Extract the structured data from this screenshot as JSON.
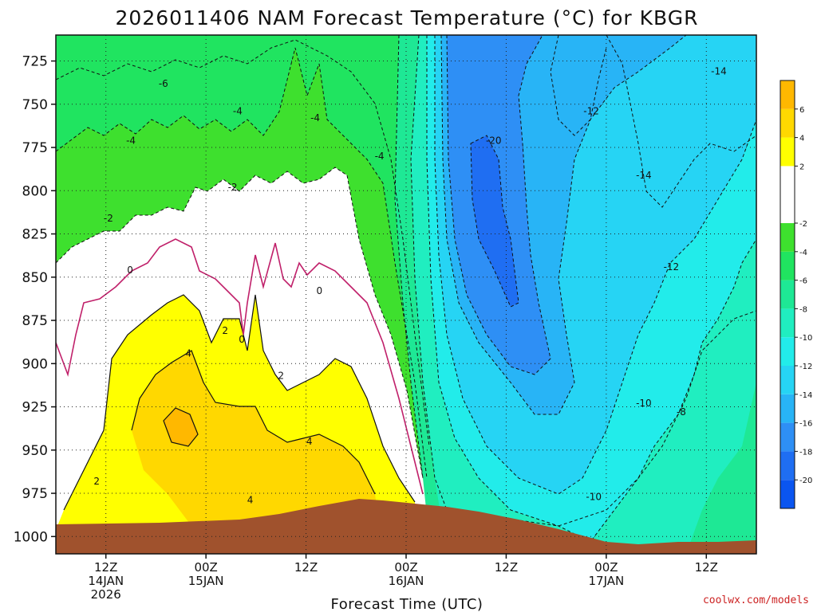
{
  "chart_data": {
    "type": "heatmap",
    "title": "2026011406 NAM Forecast Temperature (°C) for KBGR",
    "xlabel": "Forecast Time (UTC)",
    "ylabel": "",
    "credit": "coolwx.com/models",
    "y_axis": {
      "range": [
        1010,
        710
      ],
      "ticks": [
        725,
        750,
        775,
        800,
        825,
        850,
        875,
        900,
        925,
        950,
        975,
        1000
      ],
      "tick_labels": [
        "725",
        "750",
        "775",
        "800",
        "825",
        "850",
        "875",
        "900",
        "925",
        "950",
        "975",
        "1000"
      ],
      "grid": true
    },
    "x_axis": {
      "range_hours": [
        0,
        84
      ],
      "ticks": [
        {
          "hour": 6,
          "line1": "12Z",
          "line2": "14JAN",
          "line3": "2026"
        },
        {
          "hour": 18,
          "line1": "00Z",
          "line2": "15JAN",
          "line3": ""
        },
        {
          "hour": 30,
          "line1": "12Z",
          "line2": "",
          "line3": ""
        },
        {
          "hour": 42,
          "line1": "00Z",
          "line2": "16JAN",
          "line3": ""
        },
        {
          "hour": 54,
          "line1": "12Z",
          "line2": "",
          "line3": ""
        },
        {
          "hour": 66,
          "line1": "00Z",
          "line2": "17JAN",
          "line3": ""
        },
        {
          "hour": 78,
          "line1": "12Z",
          "line2": "",
          "line3": ""
        }
      ],
      "grid": true
    },
    "colorbar": {
      "levels": [
        {
          "lo": -22,
          "hi": -20,
          "color": "#0a55f0"
        },
        {
          "lo": -20,
          "hi": -18,
          "color": "#1f6ef2"
        },
        {
          "lo": -18,
          "hi": -16,
          "color": "#2e8ff5"
        },
        {
          "lo": -16,
          "hi": -14,
          "color": "#28b4f6"
        },
        {
          "lo": -14,
          "hi": -12,
          "color": "#26d4f4"
        },
        {
          "lo": -12,
          "hi": -10,
          "color": "#22ecea"
        },
        {
          "lo": -10,
          "hi": -8,
          "color": "#20eec0"
        },
        {
          "lo": -8,
          "hi": -6,
          "color": "#1ee895"
        },
        {
          "lo": -6,
          "hi": -4,
          "color": "#20e460"
        },
        {
          "lo": -4,
          "hi": -2,
          "color": "#3ee02e"
        },
        {
          "lo": -2,
          "hi": 2,
          "color": "#ffffff"
        },
        {
          "lo": 2,
          "hi": 4,
          "color": "#ffff00"
        },
        {
          "lo": 4,
          "hi": 6,
          "color": "#ffd800"
        },
        {
          "lo": 6,
          "hi": 8,
          "color": "#ffb800"
        }
      ],
      "tick_labels": [
        "6",
        "4",
        "2",
        "-2",
        "-4",
        "-6",
        "-8",
        "-10",
        "-12",
        "-14",
        "-16",
        "-18",
        "-20"
      ]
    },
    "contour_labels": [
      {
        "text": "-6",
        "hour": 12.9,
        "p": 738
      },
      {
        "text": "-4",
        "hour": 21.8,
        "p": 754
      },
      {
        "text": "-4",
        "hour": 31.1,
        "p": 758
      },
      {
        "text": "-4",
        "hour": 9.0,
        "p": 771
      },
      {
        "text": "-4",
        "hour": 38.8,
        "p": 780
      },
      {
        "text": "-2",
        "hour": 21.2,
        "p": 798
      },
      {
        "text": "-2",
        "hour": 6.3,
        "p": 816
      },
      {
        "text": "0",
        "hour": 8.9,
        "p": 846
      },
      {
        "text": "0",
        "hour": 31.6,
        "p": 858
      },
      {
        "text": "2",
        "hour": 20.3,
        "p": 881
      },
      {
        "text": "0",
        "hour": 22.3,
        "p": 886
      },
      {
        "text": "4",
        "hour": 15.9,
        "p": 894
      },
      {
        "text": "2",
        "hour": 27.0,
        "p": 907
      },
      {
        "text": "4",
        "hour": 30.4,
        "p": 945
      },
      {
        "text": "2",
        "hour": 4.9,
        "p": 968
      },
      {
        "text": "4",
        "hour": 23.3,
        "p": 979
      },
      {
        "text": "-20",
        "hour": 52.5,
        "p": 771
      },
      {
        "text": "-12",
        "hour": 64.2,
        "p": 754
      },
      {
        "text": "-14",
        "hour": 70.5,
        "p": 791
      },
      {
        "text": "-12",
        "hour": 73.8,
        "p": 844
      },
      {
        "text": "-14",
        "hour": 79.5,
        "p": 731
      },
      {
        "text": "-10",
        "hour": 70.5,
        "p": 923
      },
      {
        "text": "-8",
        "hour": 75.0,
        "p": 928
      },
      {
        "text": "-10",
        "hour": 64.5,
        "p": 977
      }
    ]
  }
}
